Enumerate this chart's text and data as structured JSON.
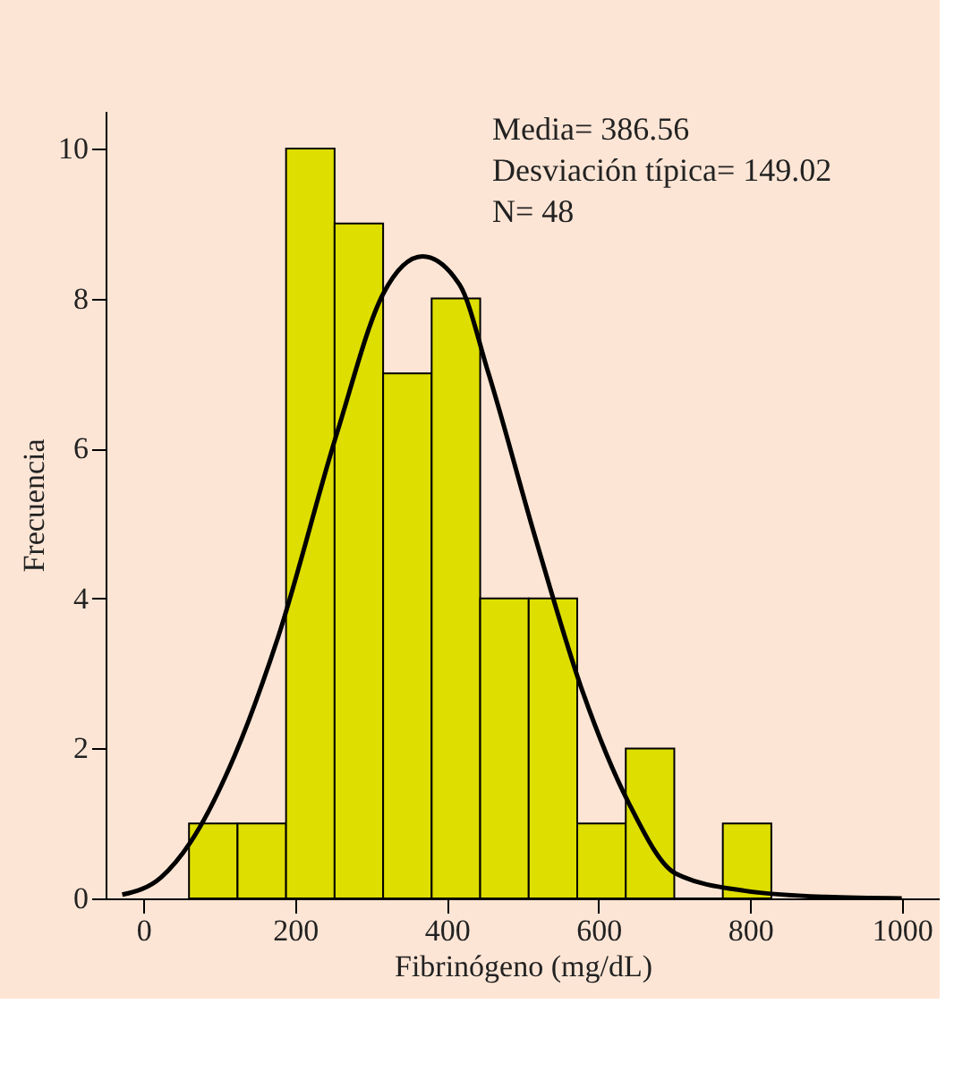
{
  "chart_data": {
    "type": "histogram",
    "xlabel": "Fibrinógeno (mg/dL)",
    "ylabel": "Frecuencia",
    "bins": [
      60,
      124,
      188,
      252,
      316,
      380,
      444,
      508,
      572,
      636,
      700,
      764,
      828
    ],
    "values": [
      1,
      1,
      10,
      9,
      7,
      8,
      4,
      4,
      1,
      2,
      0,
      1
    ],
    "color": "#dede00",
    "series": [
      {
        "type": "line",
        "color": "#000000",
        "x": [
          -28,
          23,
          62,
          120,
          177,
          255,
          316,
          368,
          417,
          455,
          517,
          579,
          640,
          702,
          794,
          900,
          1000
        ],
        "values": [
          0.05,
          0.28,
          0.75,
          1.9,
          3.47,
          6.2,
          8.06,
          8.56,
          8.18,
          7.0,
          4.8,
          2.76,
          1.27,
          0.33,
          0.1,
          0.02,
          0.0
        ]
      }
    ],
    "xlim": [
      -50,
      1050
    ],
    "xticks": [
      0,
      200,
      400,
      600,
      800,
      1000
    ],
    "ylim": [
      0,
      10.5
    ],
    "yticks": [
      0,
      2,
      4,
      6,
      8,
      10
    ],
    "grid": false,
    "annotations": [
      "Media= 386.56",
      "Desviación típica= 149.02",
      "N= 48"
    ]
  }
}
